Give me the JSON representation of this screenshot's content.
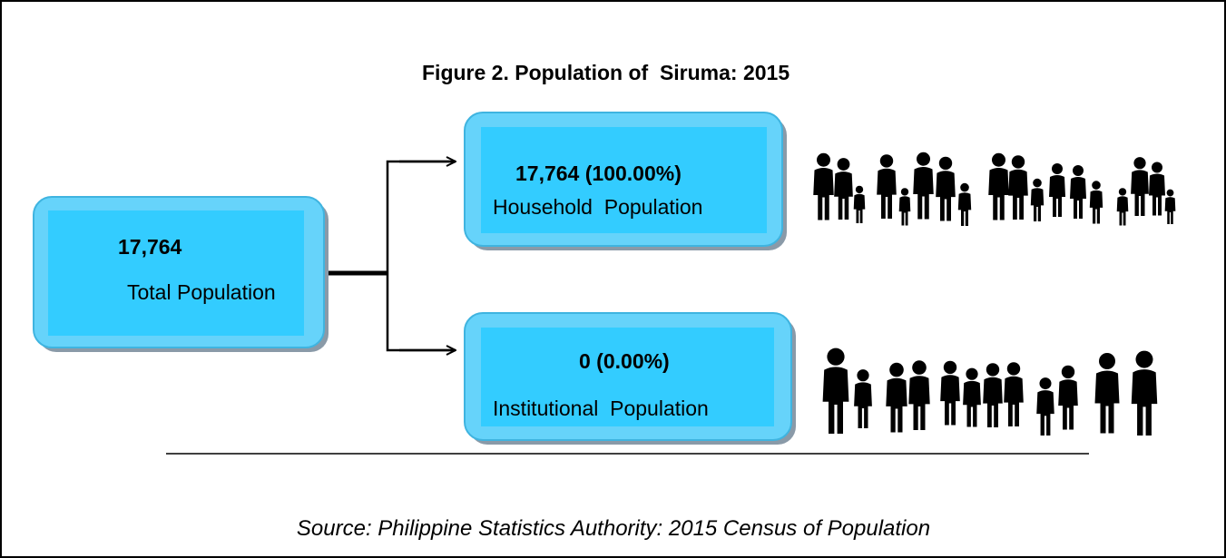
{
  "title": "Figure 2. Population of  Siruma: 2015",
  "nodes": [
    {
      "value": "17,764",
      "label": "Total Population"
    },
    {
      "value": "17,764 (100.00%)",
      "label": "Household  Population"
    },
    {
      "value": "0 (0.00%)",
      "label": "Institutional  Population"
    }
  ],
  "source": "Source: Philippine Statistics Authority: 2015 Census of Population"
}
